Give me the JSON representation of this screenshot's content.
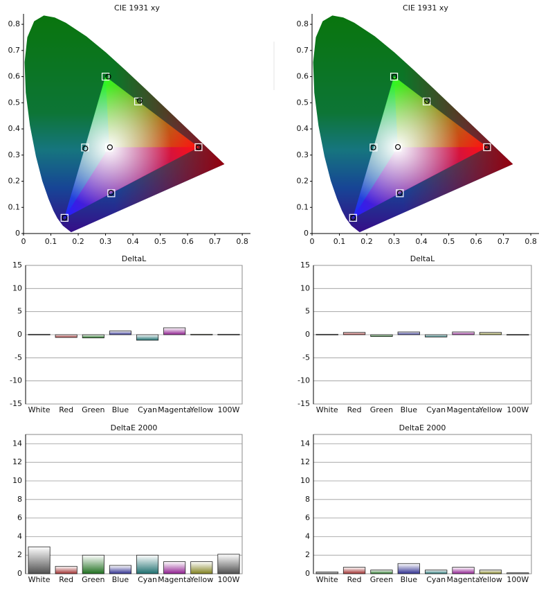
{
  "chart_data": [
    {
      "type": "scatter",
      "title": "CIE 1931 xy",
      "xlim": [
        0,
        0.83
      ],
      "ylim": [
        0,
        0.84
      ],
      "xticks": [
        0,
        0.1,
        0.2,
        0.3,
        0.4,
        0.5,
        0.6,
        0.7,
        0.8
      ],
      "yticks": [
        0,
        0.1,
        0.2,
        0.3,
        0.4,
        0.5,
        0.6,
        0.7,
        0.8
      ],
      "series": [
        {
          "marker": "square",
          "color": "#ffffff",
          "x": [
            0.64,
            0.3,
            0.15,
            0.3127,
            0.225,
            0.321,
            0.419
          ],
          "values": [
            0.33,
            0.6,
            0.06,
            0.329,
            0.329,
            0.154,
            0.505
          ]
        },
        {
          "marker": "circle",
          "color": "#000000",
          "x": [
            0.64,
            0.31,
            0.15,
            0.316,
            0.226,
            0.32,
            0.425
          ],
          "values": [
            0.33,
            0.6,
            0.06,
            0.33,
            0.325,
            0.156,
            0.508
          ]
        }
      ]
    },
    {
      "type": "scatter",
      "title": "CIE 1931 xy",
      "xlim": [
        0,
        0.83
      ],
      "ylim": [
        0,
        0.84
      ],
      "xticks": [
        0,
        0.1,
        0.2,
        0.3,
        0.4,
        0.5,
        0.6,
        0.7,
        0.8
      ],
      "yticks": [
        0,
        0.1,
        0.2,
        0.3,
        0.4,
        0.5,
        0.6,
        0.7,
        0.8
      ],
      "series": [
        {
          "marker": "square",
          "color": "#ffffff",
          "x": [
            0.64,
            0.3,
            0.15,
            0.3127,
            0.225,
            0.321,
            0.419
          ],
          "values": [
            0.33,
            0.6,
            0.06,
            0.329,
            0.329,
            0.154,
            0.505
          ]
        },
        {
          "marker": "circle",
          "color": "#000000",
          "x": [
            0.64,
            0.301,
            0.15,
            0.314,
            0.224,
            0.321,
            0.421
          ],
          "values": [
            0.33,
            0.6,
            0.06,
            0.331,
            0.329,
            0.155,
            0.507
          ]
        }
      ]
    },
    {
      "type": "bar",
      "title": "DeltaL",
      "grid": true,
      "categories": [
        "White",
        "Red",
        "Green",
        "Blue",
        "Cyan",
        "Magenta",
        "Yellow",
        "100W"
      ],
      "values": [
        0.1,
        -0.6,
        -0.7,
        0.8,
        -1.2,
        1.5,
        0.1,
        0.1
      ],
      "colors": [
        "#505050",
        "#a03030",
        "#207020",
        "#303090",
        "#1f7070",
        "#902090",
        "#808020",
        "#505050"
      ],
      "ylim": [
        -15,
        15
      ],
      "yticks": [
        -15,
        -10,
        -5,
        0,
        5,
        10,
        15
      ]
    },
    {
      "type": "bar",
      "title": "DeltaL",
      "grid": true,
      "categories": [
        "White",
        "Red",
        "Green",
        "Blue",
        "Cyan",
        "Magenta",
        "Yellow",
        "100W"
      ],
      "values": [
        0.1,
        0.5,
        -0.4,
        0.6,
        -0.5,
        0.6,
        0.5,
        0.05
      ],
      "colors": [
        "#505050",
        "#a03030",
        "#207020",
        "#303090",
        "#1f7070",
        "#902090",
        "#808020",
        "#505050"
      ],
      "ylim": [
        -15,
        15
      ],
      "yticks": [
        -15,
        -10,
        -5,
        0,
        5,
        10,
        15
      ]
    },
    {
      "type": "bar",
      "title": "DeltaE 2000",
      "grid": true,
      "categories": [
        "White",
        "Red",
        "Green",
        "Blue",
        "Cyan",
        "Magenta",
        "Yellow",
        "100W"
      ],
      "values": [
        2.9,
        0.8,
        2.0,
        0.9,
        2.0,
        1.3,
        1.3,
        2.1
      ],
      "colors": [
        "#505050",
        "#a03030",
        "#207020",
        "#303090",
        "#1f7070",
        "#902090",
        "#808020",
        "#505050"
      ],
      "ylim": [
        0,
        15
      ],
      "yticks": [
        0,
        2,
        4,
        6,
        8,
        10,
        12,
        14
      ]
    },
    {
      "type": "bar",
      "title": "DeltaE 2000",
      "grid": true,
      "categories": [
        "White",
        "Red",
        "Green",
        "Blue",
        "Cyan",
        "Magenta",
        "Yellow",
        "100W"
      ],
      "values": [
        0.2,
        0.7,
        0.4,
        1.1,
        0.4,
        0.7,
        0.4,
        0.1
      ],
      "colors": [
        "#505050",
        "#a03030",
        "#207020",
        "#303090",
        "#1f7070",
        "#902090",
        "#808020",
        "#505050"
      ],
      "ylim": [
        0,
        15
      ],
      "yticks": [
        0,
        2,
        4,
        6,
        8,
        10,
        12,
        14
      ]
    }
  ]
}
